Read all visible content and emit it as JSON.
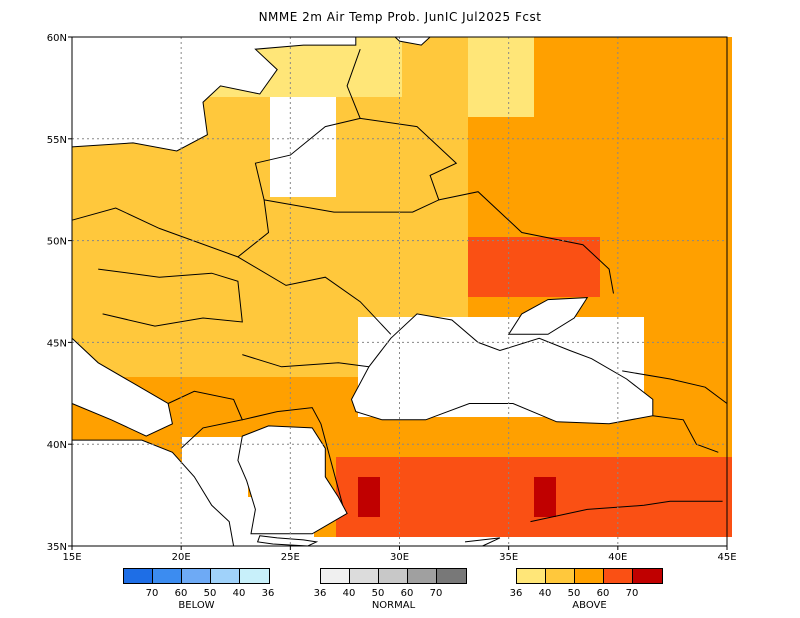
{
  "title": "NMME 2m Air Temp Prob. JunIC  Jul2025 Fcst",
  "map": {
    "lon_range": [
      15,
      45
    ],
    "lat_range": [
      35,
      60
    ],
    "x_ticks": [
      "15E",
      "20E",
      "25E",
      "30E",
      "35E",
      "40E",
      "45E"
    ],
    "y_ticks": [
      "60N",
      "55N",
      "50N",
      "45N",
      "40N",
      "35N"
    ],
    "grid": "dotted"
  },
  "legend": [
    {
      "title": "BELOW",
      "labels": [
        "70",
        "60",
        "50",
        "40",
        "36"
      ],
      "colors": [
        "#1e6ee6",
        "#3c8cf0",
        "#6eaaf5",
        "#a0d2fa",
        "#c8f0fa"
      ]
    },
    {
      "title": "NORMAL",
      "labels": [
        "36",
        "40",
        "50",
        "60",
        "70"
      ],
      "colors": [
        "#f0f0f0",
        "#dcdcdc",
        "#c8c8c8",
        "#a0a0a0",
        "#787878"
      ]
    },
    {
      "title": "ABOVE",
      "labels": [
        "36",
        "40",
        "50",
        "60",
        "70"
      ],
      "colors": [
        "#ffe678",
        "#ffc83c",
        "#ffa000",
        "#fa5014",
        "#c00000"
      ]
    }
  ]
}
